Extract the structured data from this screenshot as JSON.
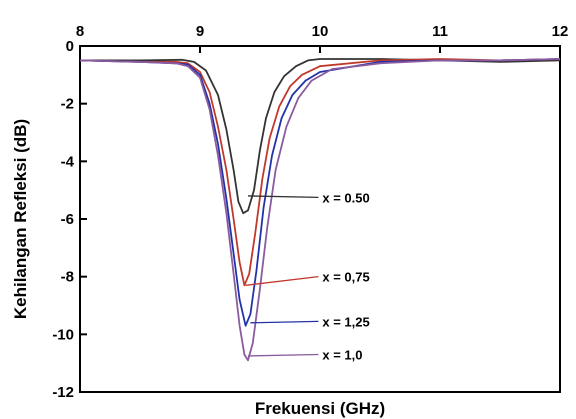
{
  "chart_data": {
    "type": "line",
    "title": "",
    "xlabel": "Frekuensi (GHz)",
    "ylabel": "Kehilangan Refleksi (dB)",
    "xlim": [
      8,
      12
    ],
    "ylim": [
      -12,
      0
    ],
    "x_ticks": [
      "8",
      "9",
      "10",
      "11",
      "12"
    ],
    "y_ticks": [
      "0",
      "-2",
      "-4",
      "-6",
      "-8",
      "-10",
      "-12"
    ],
    "x_axis_position": "top",
    "grid": false,
    "series": [
      {
        "name": "x = 0.50",
        "color": "#333333",
        "points": [
          [
            8.0,
            -0.5
          ],
          [
            8.5,
            -0.5
          ],
          [
            8.85,
            -0.48
          ],
          [
            8.95,
            -0.55
          ],
          [
            9.05,
            -0.85
          ],
          [
            9.15,
            -1.7
          ],
          [
            9.22,
            -2.9
          ],
          [
            9.28,
            -4.3
          ],
          [
            9.32,
            -5.4
          ],
          [
            9.36,
            -5.8
          ],
          [
            9.4,
            -5.7
          ],
          [
            9.45,
            -5.0
          ],
          [
            9.5,
            -3.6
          ],
          [
            9.55,
            -2.5
          ],
          [
            9.62,
            -1.6
          ],
          [
            9.7,
            -1.05
          ],
          [
            9.8,
            -0.7
          ],
          [
            9.9,
            -0.5
          ],
          [
            10.0,
            -0.45
          ],
          [
            10.5,
            -0.45
          ],
          [
            11.0,
            -0.5
          ],
          [
            11.5,
            -0.55
          ],
          [
            12.0,
            -0.5
          ]
        ]
      },
      {
        "name": "x = 0,75",
        "color": "#c0392b",
        "points": [
          [
            8.0,
            -0.5
          ],
          [
            8.5,
            -0.55
          ],
          [
            8.8,
            -0.55
          ],
          [
            8.9,
            -0.6
          ],
          [
            9.0,
            -0.9
          ],
          [
            9.08,
            -1.6
          ],
          [
            9.15,
            -2.8
          ],
          [
            9.22,
            -4.3
          ],
          [
            9.28,
            -6.0
          ],
          [
            9.33,
            -7.5
          ],
          [
            9.37,
            -8.3
          ],
          [
            9.41,
            -7.9
          ],
          [
            9.46,
            -6.5
          ],
          [
            9.52,
            -4.6
          ],
          [
            9.58,
            -3.2
          ],
          [
            9.66,
            -2.1
          ],
          [
            9.75,
            -1.4
          ],
          [
            9.85,
            -1.0
          ],
          [
            10.0,
            -0.7
          ],
          [
            10.5,
            -0.5
          ],
          [
            11.0,
            -0.45
          ],
          [
            11.5,
            -0.5
          ],
          [
            12.0,
            -0.45
          ]
        ]
      },
      {
        "name": "x = 1,25",
        "color": "#2233aa",
        "points": [
          [
            8.0,
            -0.5
          ],
          [
            8.5,
            -0.55
          ],
          [
            8.8,
            -0.6
          ],
          [
            8.9,
            -0.65
          ],
          [
            9.0,
            -1.0
          ],
          [
            9.08,
            -2.0
          ],
          [
            9.15,
            -3.4
          ],
          [
            9.22,
            -5.3
          ],
          [
            9.28,
            -7.2
          ],
          [
            9.33,
            -8.8
          ],
          [
            9.38,
            -9.7
          ],
          [
            9.42,
            -9.3
          ],
          [
            9.47,
            -7.8
          ],
          [
            9.53,
            -5.6
          ],
          [
            9.6,
            -3.8
          ],
          [
            9.68,
            -2.5
          ],
          [
            9.77,
            -1.7
          ],
          [
            9.88,
            -1.2
          ],
          [
            10.0,
            -0.9
          ],
          [
            10.5,
            -0.55
          ],
          [
            11.0,
            -0.5
          ],
          [
            11.5,
            -0.5
          ],
          [
            12.0,
            -0.45
          ]
        ]
      },
      {
        "name": "x = 1,0",
        "color": "#8a5b9e",
        "points": [
          [
            8.0,
            -0.5
          ],
          [
            8.5,
            -0.55
          ],
          [
            8.8,
            -0.6
          ],
          [
            8.9,
            -0.7
          ],
          [
            9.0,
            -1.1
          ],
          [
            9.08,
            -2.2
          ],
          [
            9.15,
            -3.8
          ],
          [
            9.22,
            -5.8
          ],
          [
            9.28,
            -7.9
          ],
          [
            9.33,
            -9.7
          ],
          [
            9.37,
            -10.7
          ],
          [
            9.4,
            -10.9
          ],
          [
            9.44,
            -10.3
          ],
          [
            9.5,
            -8.4
          ],
          [
            9.56,
            -6.3
          ],
          [
            9.63,
            -4.3
          ],
          [
            9.72,
            -2.8
          ],
          [
            9.82,
            -1.8
          ],
          [
            9.93,
            -1.2
          ],
          [
            10.1,
            -0.8
          ],
          [
            10.5,
            -0.6
          ],
          [
            11.0,
            -0.5
          ],
          [
            11.5,
            -0.5
          ],
          [
            12.0,
            -0.45
          ]
        ]
      }
    ],
    "annotations": [
      {
        "label": "x = 0.50",
        "at": [
          9.4,
          -5.2
        ],
        "text_at": [
          10.02,
          -5.25
        ],
        "line_color": "#333333"
      },
      {
        "label": "x = 0,75",
        "at": [
          9.38,
          -8.3
        ],
        "text_at": [
          10.02,
          -8.0
        ],
        "line_color": "#c0392b"
      },
      {
        "label": "x = 1,25",
        "at": [
          9.42,
          -9.6
        ],
        "text_at": [
          10.02,
          -9.55
        ],
        "line_color": "#2233aa"
      },
      {
        "label": "x = 1,0",
        "at": [
          9.4,
          -10.75
        ],
        "text_at": [
          10.02,
          -10.7
        ],
        "line_color": "#8a5b9e"
      }
    ]
  }
}
